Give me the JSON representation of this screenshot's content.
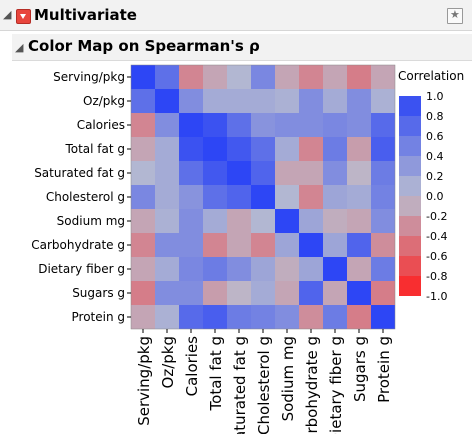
{
  "report": {
    "title": "Multivariate",
    "subtitle": "Color Map on Spearman's ρ"
  },
  "icons": {
    "disclosure": "disclosure-triangle-icon",
    "menu": "red-menu-triangle-icon",
    "window": "star-window-icon"
  },
  "colors": {
    "positive": "#2d46f5",
    "neutral": "#b9bdd0",
    "negative": "#ff1e1e"
  },
  "chart_data": {
    "type": "heatmap",
    "variables": [
      "Serving/pkg",
      "Oz/pkg",
      "Calories",
      "Total fat g",
      "Saturated fat g",
      "Cholesterol g",
      "Sodium mg",
      "Carbohydrate g",
      "Dietary fiber g",
      "Sugars g",
      "Protein g"
    ],
    "legend_title": "Correlation",
    "legend_ticks": [
      "1.0",
      "0.8",
      "0.6",
      "0.4",
      "0.2",
      "0.0",
      "-0.2",
      "-0.4",
      "-0.6",
      "-0.8",
      "-1.0"
    ],
    "color_range": [
      -1,
      1
    ],
    "legend_placement": "right",
    "matrix": [
      [
        1.0,
        0.65,
        -0.35,
        -0.15,
        0.05,
        0.45,
        -0.15,
        -0.35,
        -0.15,
        -0.4,
        -0.15
      ],
      [
        0.65,
        1.0,
        0.4,
        0.15,
        0.15,
        0.15,
        0.1,
        0.4,
        0.15,
        0.4,
        0.1
      ],
      [
        -0.35,
        0.4,
        1.0,
        0.9,
        0.65,
        0.35,
        0.4,
        0.4,
        0.45,
        0.4,
        0.7
      ],
      [
        -0.15,
        0.15,
        0.9,
        1.0,
        0.85,
        0.65,
        0.15,
        -0.35,
        0.55,
        -0.2,
        0.8
      ],
      [
        0.05,
        0.15,
        0.65,
        0.85,
        1.0,
        0.75,
        -0.15,
        -0.15,
        0.4,
        -0.05,
        0.55
      ],
      [
        0.45,
        0.15,
        0.35,
        0.65,
        0.75,
        1.0,
        0.05,
        -0.35,
        0.2,
        0.15,
        0.5
      ],
      [
        -0.15,
        0.1,
        0.4,
        0.15,
        -0.15,
        0.05,
        1.0,
        0.2,
        -0.1,
        -0.15,
        0.4
      ],
      [
        -0.35,
        0.4,
        0.4,
        -0.35,
        -0.15,
        -0.35,
        0.2,
        1.0,
        0.2,
        0.75,
        -0.3
      ],
      [
        -0.15,
        0.15,
        0.45,
        0.55,
        0.4,
        0.2,
        -0.1,
        0.2,
        1.0,
        -0.15,
        0.55
      ],
      [
        -0.4,
        0.4,
        0.4,
        -0.2,
        -0.05,
        0.15,
        -0.15,
        0.75,
        -0.15,
        1.0,
        -0.4
      ],
      [
        -0.15,
        0.1,
        0.7,
        0.8,
        0.55,
        0.5,
        0.4,
        -0.3,
        0.55,
        -0.4,
        1.0
      ]
    ]
  }
}
